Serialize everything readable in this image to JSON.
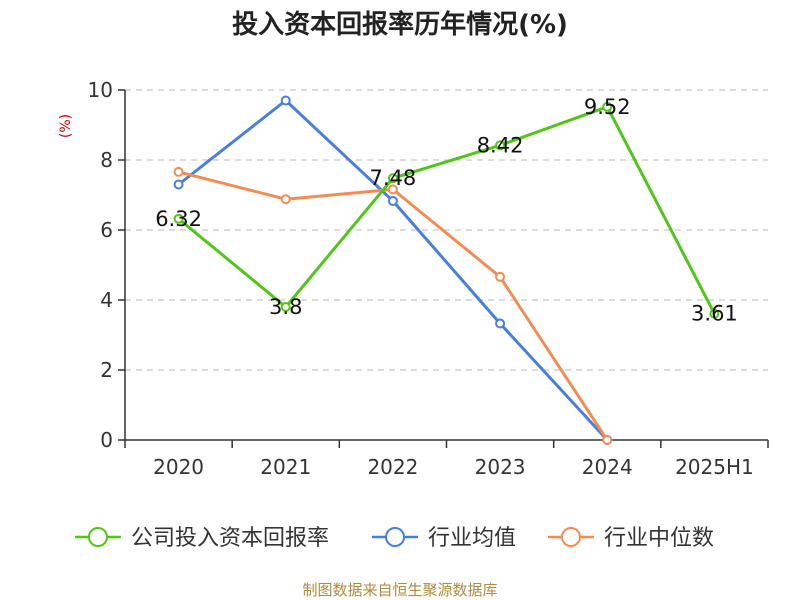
{
  "chart_data": {
    "type": "line",
    "title": "投入资本回报率历年情况(%)",
    "ylabel": "(%)",
    "xlabel": "",
    "categories": [
      "2020",
      "2021",
      "2022",
      "2023",
      "2024",
      "2025H1"
    ],
    "ylim": [
      0,
      10
    ],
    "yticks": [
      0,
      2,
      4,
      6,
      8,
      10
    ],
    "grid": true,
    "legend_position": "bottom",
    "series": [
      {
        "name": "公司投入资本回报率",
        "color": "#52c41a",
        "values": [
          6.32,
          3.8,
          7.48,
          8.42,
          9.52,
          3.61
        ],
        "labels": [
          "6.32",
          "3.8",
          "7.48",
          "8.42",
          "9.52",
          "3.61"
        ]
      },
      {
        "name": "行业均值",
        "color": "#4a7fd9",
        "values": [
          7.3,
          9.7,
          6.83,
          3.33,
          0.0,
          null
        ]
      },
      {
        "name": "行业中位数",
        "color": "#f28c55",
        "values": [
          7.66,
          6.88,
          7.16,
          4.66,
          0.0,
          null
        ]
      }
    ],
    "source": "制图数据来自恒生聚源数据库"
  }
}
